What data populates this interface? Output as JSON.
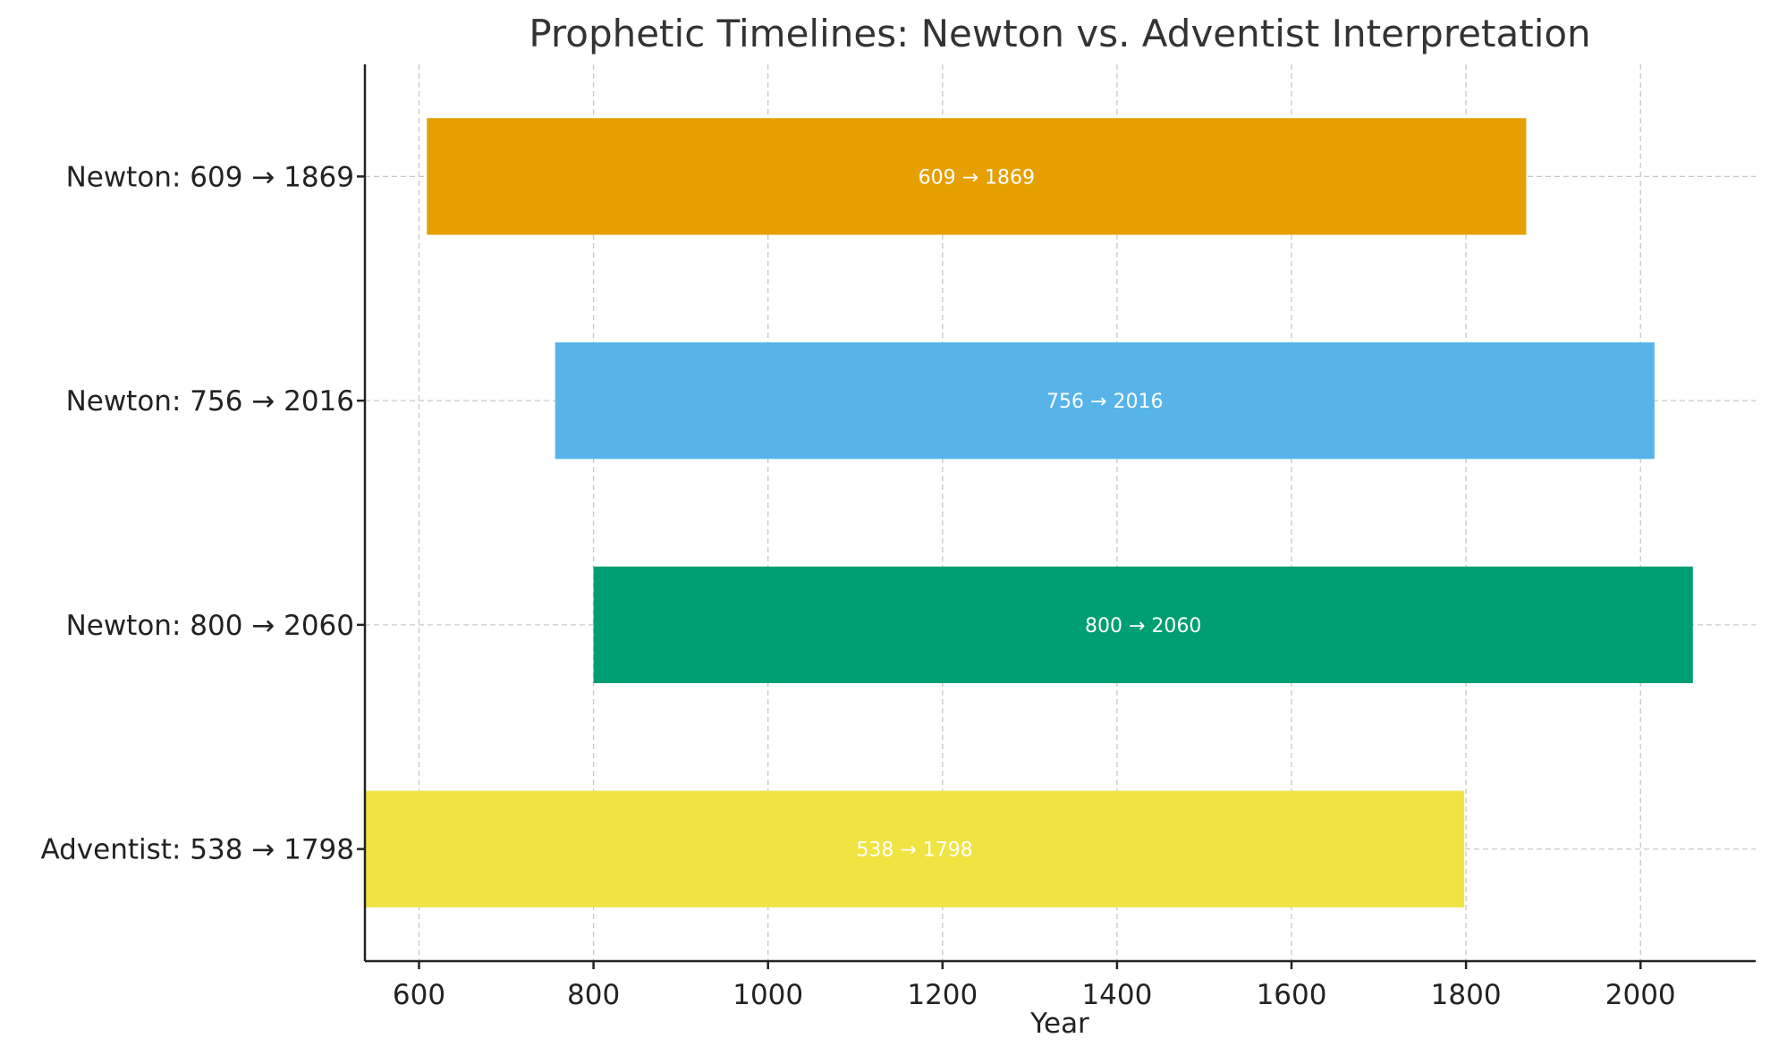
{
  "chart_data": {
    "type": "bar",
    "orientation": "horizontal",
    "title": "Prophetic Timelines: Newton vs. Adventist Interpretation",
    "xlabel": "Year",
    "ylabel": "",
    "xlim": [
      538,
      2132
    ],
    "xticks": [
      600,
      800,
      1000,
      1200,
      1400,
      1600,
      1800,
      2000
    ],
    "grid": true,
    "bars": [
      {
        "category": "Newton: 609 → 1869",
        "start": 609,
        "end": 1869,
        "label": "609 → 1869",
        "color": "#E69F00"
      },
      {
        "category": "Newton: 756 → 2016",
        "start": 756,
        "end": 2016,
        "label": "756 → 2016",
        "color": "#56B4E9"
      },
      {
        "category": "Newton: 800 → 2060",
        "start": 800,
        "end": 2060,
        "label": "800 → 2060",
        "color": "#009E73"
      },
      {
        "category": "Adventist: 538 → 1798",
        "start": 538,
        "end": 1798,
        "label": "538 → 1798",
        "color": "#F0E442"
      }
    ]
  }
}
